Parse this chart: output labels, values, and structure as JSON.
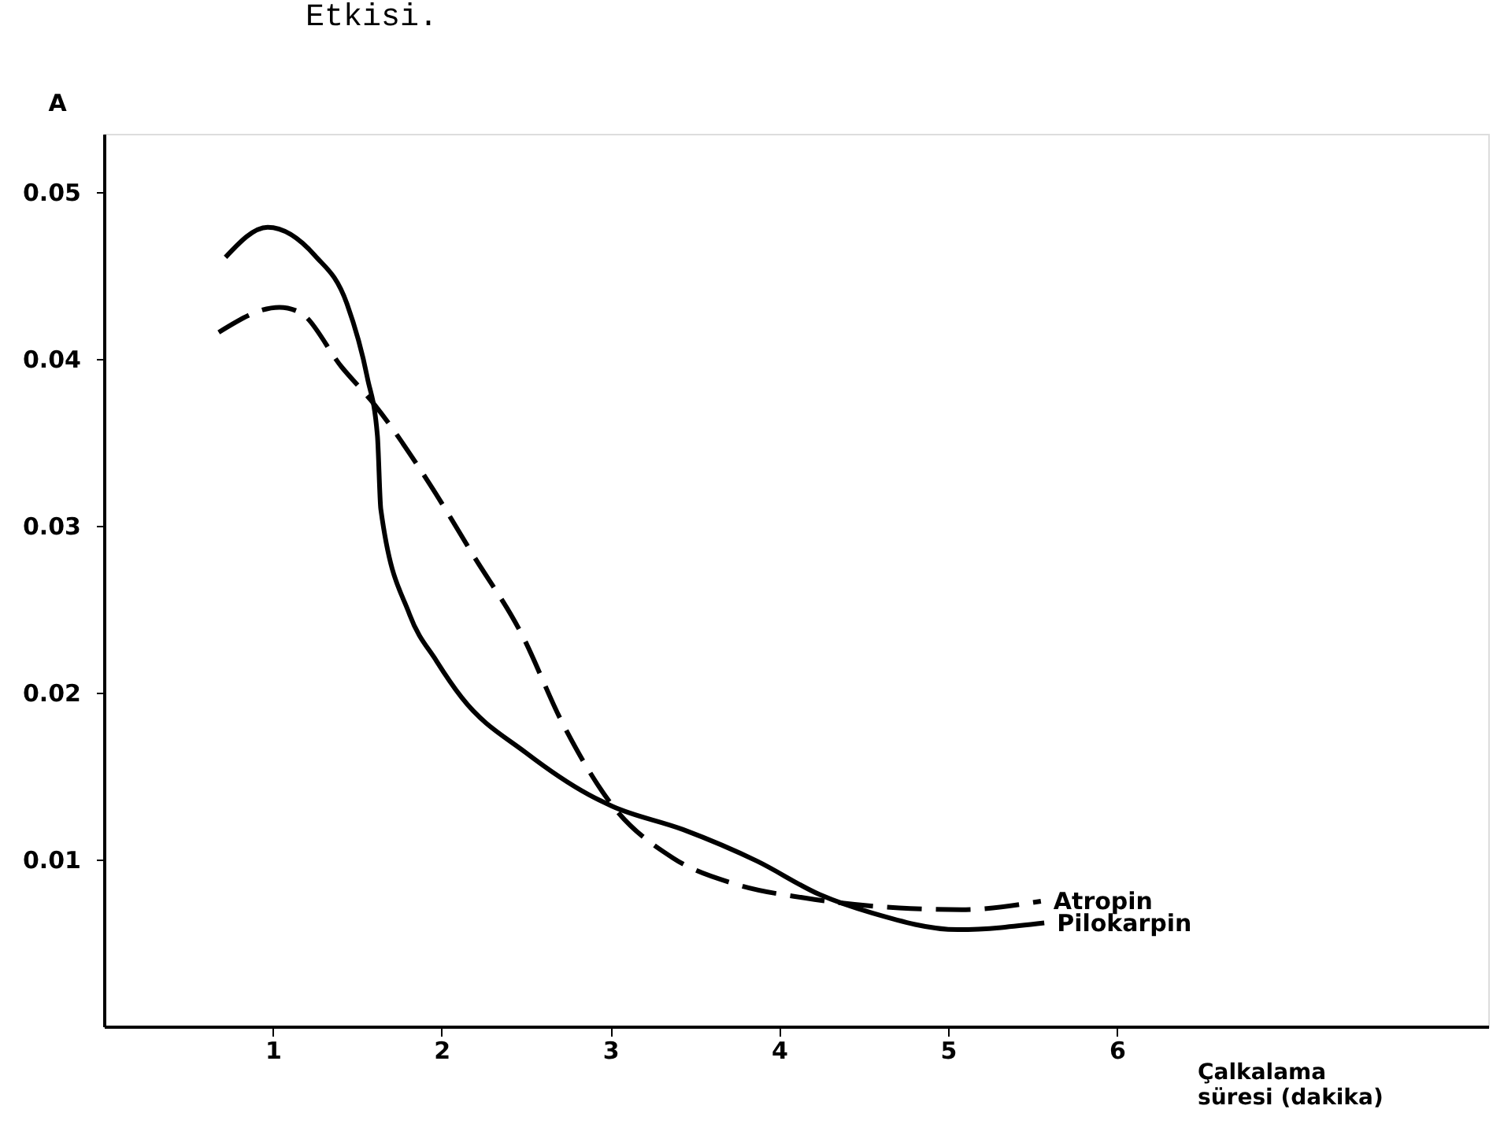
{
  "chart_data": {
    "type": "line",
    "title": "Etkisi.",
    "xlabel": "Çalkalama\nsüresi (dakika)",
    "ylabel": "A",
    "xlim": [
      0,
      8.2
    ],
    "xticks": [
      1,
      2,
      3,
      4,
      5,
      6
    ],
    "ylim": [
      0,
      0.0535
    ],
    "yticks": [
      0.01,
      0.02,
      0.03,
      0.04,
      0.05
    ],
    "grid": false,
    "marker": "none",
    "series": [
      {
        "name": "Atropin",
        "color": "#000000",
        "line_style": "dashed",
        "x": [
          0.68,
          1.04,
          1.16,
          1.41,
          1.6,
          1.93,
          2.19,
          2.47,
          2.72,
          3.0,
          3.37,
          3.75,
          4.15,
          4.71,
          5.08,
          5.55
        ],
        "values": [
          0.0416,
          0.0431,
          0.0428,
          0.0395,
          0.0373,
          0.0325,
          0.0282,
          0.0236,
          0.0181,
          0.0134,
          0.0101,
          0.0085,
          0.0077,
          0.0071,
          0.007,
          0.0075
        ]
      },
      {
        "name": "Pilokarpin",
        "color": "#000000",
        "line_style": "solid",
        "x": [
          0.72,
          0.97,
          1.25,
          1.44,
          1.56,
          1.62,
          1.64,
          1.81,
          1.97,
          2.12,
          2.5,
          2.87,
          3.01,
          3.43,
          3.87,
          4.24,
          4.55,
          5.06,
          5.57
        ],
        "values": [
          0.0461,
          0.0479,
          0.0462,
          0.0433,
          0.0389,
          0.0354,
          0.031,
          0.0247,
          0.0219,
          0.0197,
          0.0164,
          0.0139,
          0.0132,
          0.0118,
          0.0099,
          0.0079,
          0.0068,
          0.0058,
          0.0062
        ]
      }
    ]
  }
}
